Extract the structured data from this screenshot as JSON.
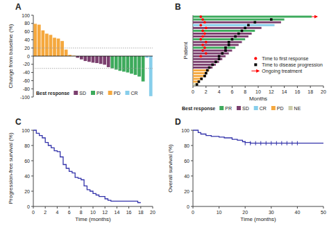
{
  "chart_data": [
    {
      "type": "bar",
      "title": "A",
      "values": [
        79,
        77,
        63,
        55,
        52,
        45,
        43,
        37,
        16,
        3,
        1,
        -4,
        -8,
        -12,
        -14,
        -16,
        -17,
        -19,
        -21,
        -27,
        -30,
        -33,
        -36,
        -38,
        -40,
        -43,
        -46,
        -50,
        -62,
        -4,
        -98
      ],
      "colors": [
        "#F5A83E",
        "#F5A83E",
        "#F5A83E",
        "#F5A83E",
        "#F5A83E",
        "#F5A83E",
        "#F5A83E",
        "#F5A83E",
        "#F5A83E",
        "#F5A83E",
        "#F5A83E",
        "#7B3F6E",
        "#7B3F6E",
        "#7B3F6E",
        "#7B3F6E",
        "#7B3F6E",
        "#7B3F6E",
        "#7B3F6E",
        "#7B3F6E",
        "#7B3F6E",
        "#3DAA5C",
        "#3DAA5C",
        "#3DAA5C",
        "#3DAA5C",
        "#3DAA5C",
        "#3DAA5C",
        "#3DAA5C",
        "#3DAA5C",
        "#3DAA5C",
        "#87CEEB",
        "#87CEEB"
      ],
      "ylabel": "Change from baseline (%)",
      "ylim": [
        -100,
        100
      ],
      "yticks": [
        -100,
        -80,
        -60,
        -40,
        -20,
        0,
        20,
        40,
        60,
        80,
        100
      ],
      "hlines": [
        20,
        -30
      ],
      "legend": "lower left",
      "legend_title": "Best response",
      "legend_entries": [
        {
          "name": "SD",
          "color": "#7B3F6E"
        },
        {
          "name": "PR",
          "color": "#3DAA5C"
        },
        {
          "name": "PD",
          "color": "#F5A83E"
        },
        {
          "name": "CR",
          "color": "#87CEEB"
        }
      ],
      "tick_labels": "y",
      "grid": false
    },
    {
      "type": "bar",
      "orientation": "horizontal",
      "title": "B",
      "values": [
        18.2,
        14.0,
        13.5,
        12.5,
        10.5,
        9.5,
        9.0,
        8.5,
        8.0,
        7.5,
        7.0,
        6.5,
        6.0,
        5.5,
        5.0,
        4.5,
        4.0,
        3.5,
        3.0,
        2.5,
        2.2,
        2.0,
        1.5,
        1.0,
        0.7
      ],
      "colors": [
        "#3DAA5C",
        "#3DAA5C",
        "#7B3F6E",
        "#87CEEB",
        "#7B3F6E",
        "#3DAA5C",
        "#7B3F6E",
        "#7B3F6E",
        "#3DAA5C",
        "#7B3F6E",
        "#7B3F6E",
        "#3DAA5C",
        "#7B3F6E",
        "#7B3F6E",
        "#7B3F6E",
        "#7B3F6E",
        "#7B3F6E",
        "#7B3F6E",
        "#7B3F6E",
        "#F5A83E",
        "#F5A83E",
        "#F5A83E",
        "#F5A83E",
        "#F5A83E",
        "#CCCCAA"
      ],
      "points": [
        {
          "name": "Time to first response",
          "color": "red",
          "marker": "circle",
          "values": [
            1.2,
            1.5,
            1.8,
            1.2,
            2.0,
            1.5,
            1.8,
            1.5,
            1.2,
            2.0,
            1.5,
            1.8,
            1.5,
            2.0,
            1.2,
            null,
            null,
            null,
            null,
            null,
            null,
            null,
            null,
            null,
            null
          ]
        },
        {
          "name": "Time to disease progression",
          "color": "black",
          "marker": "square",
          "values": [
            null,
            12.0,
            9.5,
            8.5,
            8.0,
            7.5,
            7.0,
            6.5,
            6.0,
            5.5,
            5.5,
            5.0,
            5.0,
            4.5,
            4.0,
            4.0,
            3.5,
            3.0,
            2.5,
            2.2,
            2.0,
            1.8,
            1.3,
            0.9,
            0.6
          ]
        }
      ],
      "ongoing": {
        "name": "Ongoing treatment",
        "color": "red",
        "values": [
          true,
          false,
          false,
          false,
          false,
          false,
          false,
          false,
          false,
          false,
          false,
          false,
          false,
          false,
          false,
          false,
          false,
          false,
          false,
          false,
          false,
          false,
          false,
          false,
          false
        ]
      },
      "xlabel": "Months",
      "ylabel": "Patient",
      "xlim": [
        0,
        20
      ],
      "xticks": [
        0,
        2,
        4,
        6,
        8,
        10,
        12,
        14,
        16,
        18,
        20
      ],
      "legend": "right",
      "legend_title": "Best response",
      "legend_entries": [
        {
          "name": "PR",
          "color": "#3DAA5C"
        },
        {
          "name": "SD",
          "color": "#7B3F6E"
        },
        {
          "name": "CR",
          "color": "#87CEEB"
        },
        {
          "name": "PD",
          "color": "#F5A83E"
        },
        {
          "name": "NE",
          "color": "#CCCCAA"
        }
      ],
      "tick_labels": "x",
      "grid": false
    },
    {
      "type": "step",
      "title": "C",
      "x": [
        0,
        0.5,
        1.0,
        1.5,
        2.0,
        2.5,
        3.0,
        3.5,
        4.0,
        4.5,
        5.0,
        5.5,
        6.0,
        6.5,
        7.0,
        7.5,
        8.0,
        8.5,
        9.0,
        9.5,
        10.0,
        10.5,
        11.0,
        12.0,
        12.5,
        13.0,
        17.5,
        18.0
      ],
      "values": [
        100,
        96,
        93,
        90,
        84,
        80,
        77,
        73,
        72,
        65,
        55,
        50,
        46,
        44,
        38,
        37,
        35,
        27,
        22,
        20,
        17,
        15,
        13,
        10,
        8,
        7,
        5,
        5
      ],
      "color": "#3333AA",
      "xlabel": "Time (months)",
      "ylabel": "Progression-free survival (%)",
      "xlim": [
        0,
        20
      ],
      "ylim": [
        0,
        100
      ],
      "yticks": [
        0,
        20,
        40,
        60,
        80,
        100
      ],
      "xticks": [
        0,
        2,
        4,
        6,
        8,
        10,
        12,
        14,
        16,
        18,
        20
      ],
      "grid": false
    },
    {
      "type": "step",
      "title": "D",
      "x": [
        0,
        1,
        2,
        3,
        5,
        7,
        10,
        12,
        15,
        17,
        19,
        20,
        22,
        25,
        27,
        30,
        33,
        35,
        37,
        39,
        40,
        50
      ],
      "values": [
        100,
        100,
        97,
        95,
        93,
        92,
        91,
        90,
        88,
        87,
        85,
        84,
        83,
        83,
        83,
        83,
        83,
        83,
        83,
        83,
        83,
        83
      ],
      "censor_x": [
        20,
        22,
        24,
        26,
        28,
        30,
        32,
        34,
        36,
        38,
        40
      ],
      "censor_y": 83,
      "color": "#3333AA",
      "xlabel": "Time (months)",
      "ylabel": "Overall survival (%)",
      "xlim": [
        0,
        50
      ],
      "ylim": [
        0,
        100
      ],
      "yticks": [
        0,
        20,
        40,
        60,
        80,
        100
      ],
      "xticks": [
        0,
        10,
        20,
        30,
        40,
        50
      ],
      "grid": false
    }
  ]
}
